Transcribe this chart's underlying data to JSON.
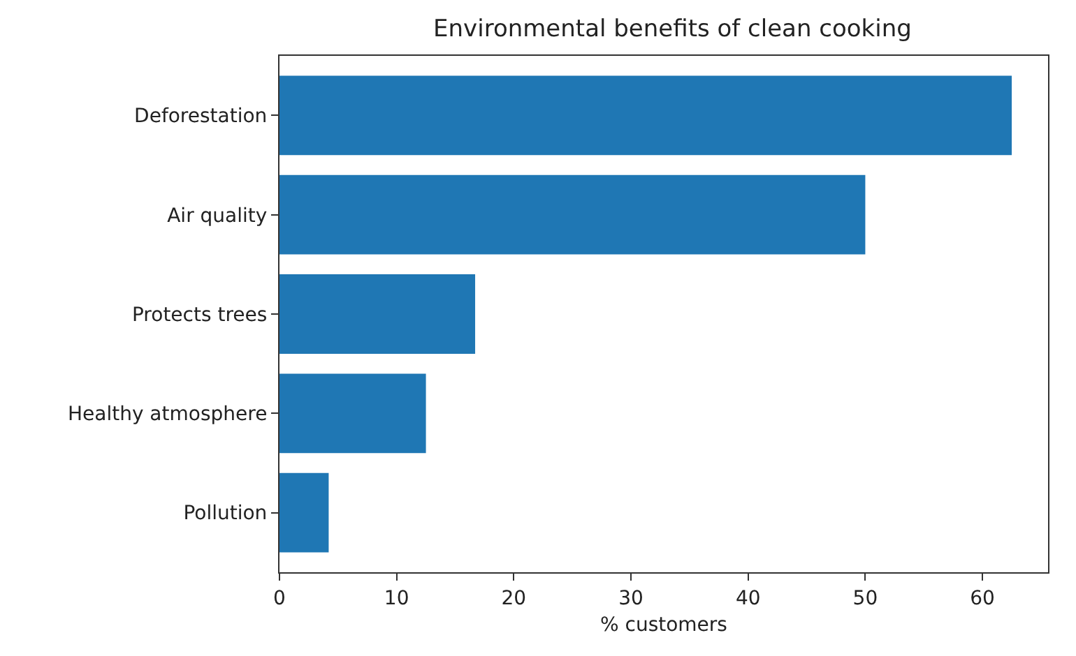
{
  "chart_data": {
    "type": "bar",
    "orientation": "horizontal",
    "title": "Environmental benefits of clean cooking",
    "xlabel": "% customers",
    "categories": [
      "Deforestation",
      "Air quality",
      "Protects trees",
      "Healthy atmosphere",
      "Pollution"
    ],
    "values": [
      62.5,
      50,
      16.7,
      12.5,
      4.2
    ],
    "color": "#1f77b4",
    "xlim": [
      0,
      65.6
    ],
    "xticks": [
      0,
      10,
      20,
      30,
      40,
      50,
      60
    ],
    "grid": false
  }
}
